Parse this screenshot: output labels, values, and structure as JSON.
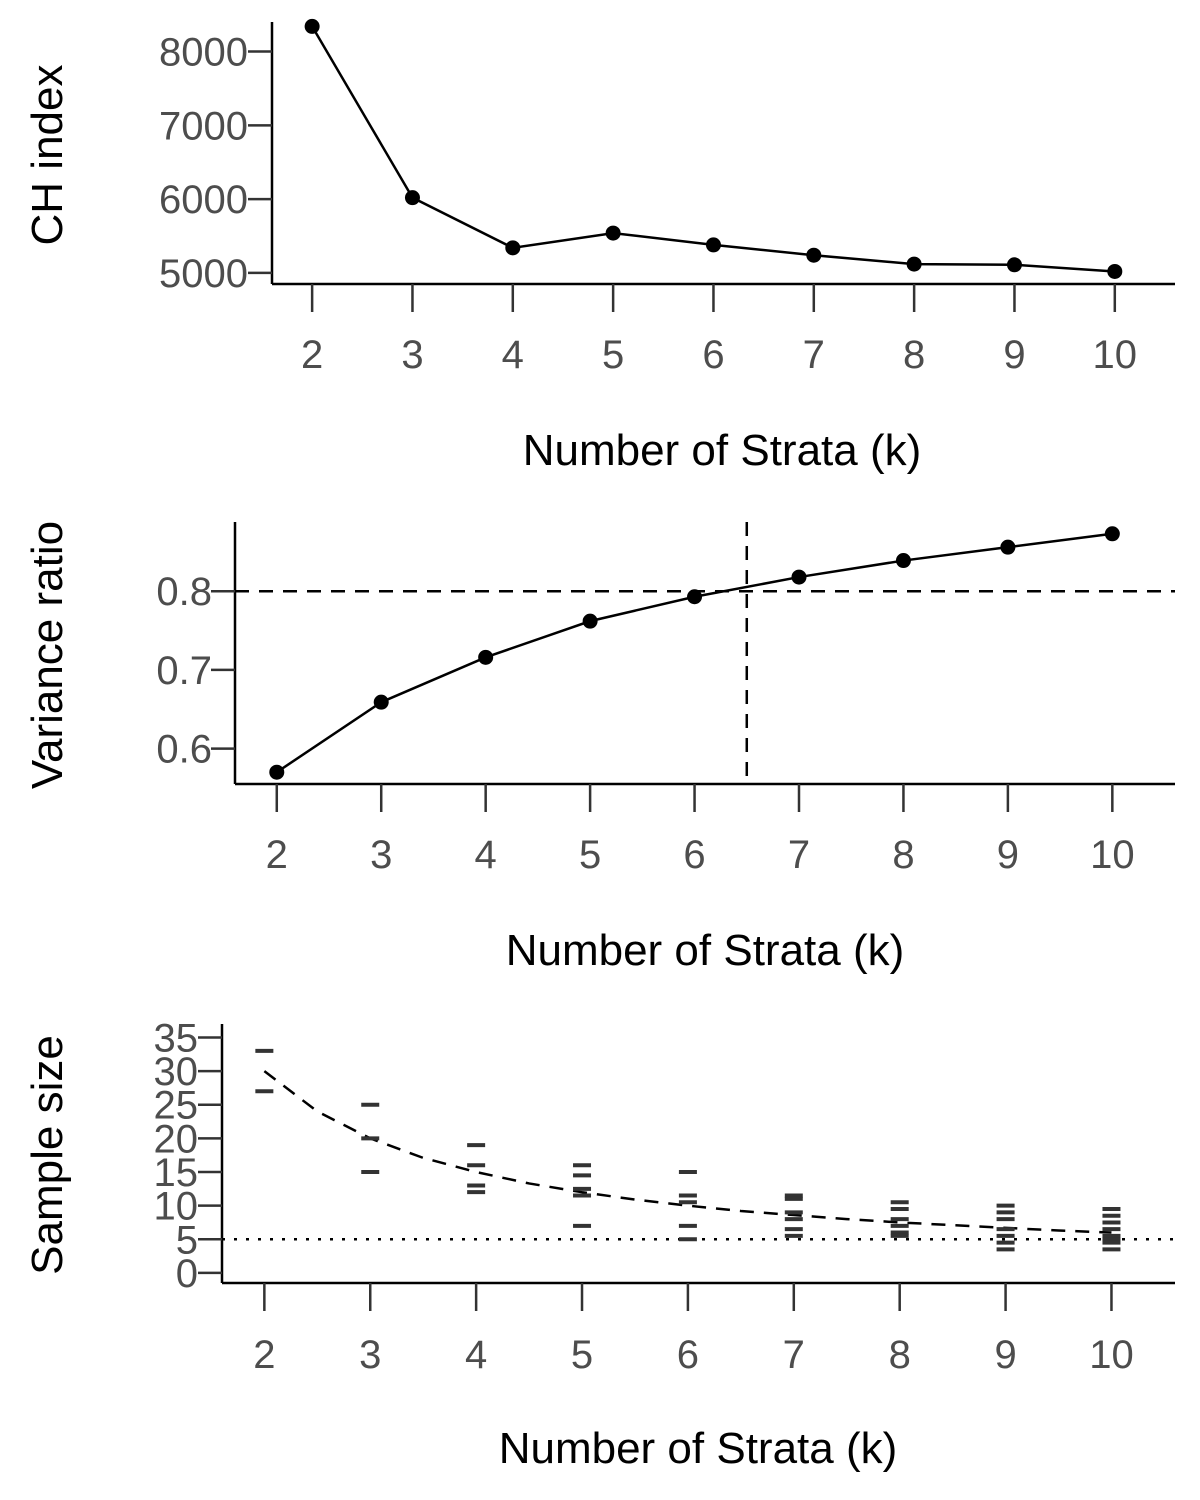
{
  "chart_data": [
    {
      "type": "line",
      "xlabel": "Number of Strata (k)",
      "ylabel": "CH index",
      "x": [
        2,
        3,
        4,
        5,
        6,
        7,
        8,
        9,
        10
      ],
      "xlim": [
        1.6,
        10.6
      ],
      "ylim": [
        4850,
        8400
      ],
      "y_ticks": [
        5000,
        6000,
        7000,
        8000
      ],
      "series": [
        {
          "values": [
            8340,
            6020,
            5340,
            5540,
            5380,
            5240,
            5120,
            5110,
            5020
          ]
        }
      ],
      "reference_lines": [],
      "grid": false,
      "legend": "none"
    },
    {
      "type": "line",
      "xlabel": "Number of Strata (k)",
      "ylabel": "Variance ratio",
      "x": [
        2,
        3,
        4,
        5,
        6,
        7,
        8,
        9,
        10
      ],
      "xlim": [
        1.6,
        10.6
      ],
      "ylim": [
        0.555,
        0.888
      ],
      "y_ticks": [
        0.6,
        0.7,
        0.8
      ],
      "series": [
        {
          "values": [
            0.57,
            0.659,
            0.716,
            0.762,
            0.793,
            0.818,
            0.839,
            0.856,
            0.873
          ]
        }
      ],
      "reference_lines": [
        {
          "axis": "y",
          "value": 0.8,
          "style": "dashed"
        },
        {
          "axis": "x",
          "value": 6.5,
          "style": "dashed"
        }
      ],
      "grid": false,
      "legend": "none"
    },
    {
      "type": "scatter",
      "xlabel": "Number of Strata (k)",
      "ylabel": "Sample size",
      "x": [
        2,
        3,
        4,
        5,
        6,
        7,
        8,
        9,
        10
      ],
      "xlim": [
        1.6,
        10.6
      ],
      "ylim": [
        -1.5,
        37
      ],
      "y_ticks": [
        0,
        5,
        10,
        15,
        20,
        25,
        30,
        35
      ],
      "points": [
        {
          "x": 2,
          "y": 33
        },
        {
          "x": 2,
          "y": 27
        },
        {
          "x": 3,
          "y": 25
        },
        {
          "x": 3,
          "y": 20
        },
        {
          "x": 3,
          "y": 15
        },
        {
          "x": 4,
          "y": 19
        },
        {
          "x": 4,
          "y": 16
        },
        {
          "x": 4,
          "y": 13
        },
        {
          "x": 4,
          "y": 12
        },
        {
          "x": 5,
          "y": 16
        },
        {
          "x": 5,
          "y": 14.5
        },
        {
          "x": 5,
          "y": 12.5
        },
        {
          "x": 5,
          "y": 11.5
        },
        {
          "x": 5,
          "y": 7
        },
        {
          "x": 6,
          "y": 15
        },
        {
          "x": 6,
          "y": 11.5
        },
        {
          "x": 6,
          "y": 10.5
        },
        {
          "x": 6,
          "y": 7
        },
        {
          "x": 6,
          "y": 5
        },
        {
          "x": 7,
          "y": 11.5
        },
        {
          "x": 7,
          "y": 11
        },
        {
          "x": 7,
          "y": 9
        },
        {
          "x": 7,
          "y": 8
        },
        {
          "x": 7,
          "y": 6.5
        },
        {
          "x": 7,
          "y": 5.5
        },
        {
          "x": 8,
          "y": 10.5
        },
        {
          "x": 8,
          "y": 9.5
        },
        {
          "x": 8,
          "y": 8
        },
        {
          "x": 8,
          "y": 7
        },
        {
          "x": 8,
          "y": 6
        },
        {
          "x": 8,
          "y": 5.5
        },
        {
          "x": 9,
          "y": 10
        },
        {
          "x": 9,
          "y": 9
        },
        {
          "x": 9,
          "y": 8
        },
        {
          "x": 9,
          "y": 6.5
        },
        {
          "x": 9,
          "y": 5.5
        },
        {
          "x": 9,
          "y": 4.5
        },
        {
          "x": 9,
          "y": 3.5
        },
        {
          "x": 10,
          "y": 9.5
        },
        {
          "x": 10,
          "y": 8.5
        },
        {
          "x": 10,
          "y": 7.5
        },
        {
          "x": 10,
          "y": 6.5
        },
        {
          "x": 10,
          "y": 5.5
        },
        {
          "x": 10,
          "y": 5
        },
        {
          "x": 10,
          "y": 4.5
        },
        {
          "x": 10,
          "y": 3.5
        }
      ],
      "curve": {
        "style": "dashed",
        "x": [
          2,
          2.5,
          3,
          3.5,
          4,
          4.5,
          5,
          5.5,
          6,
          6.5,
          7,
          7.5,
          8,
          8.5,
          9,
          9.5,
          10
        ],
        "y": [
          30,
          24,
          20,
          17.1,
          15,
          13.3,
          12,
          10.9,
          10,
          9.2,
          8.6,
          8,
          7.5,
          7.1,
          6.7,
          6.3,
          6
        ]
      },
      "reference_lines": [
        {
          "axis": "y",
          "value": 5,
          "style": "dotted"
        }
      ],
      "grid": false,
      "legend": "none"
    }
  ]
}
